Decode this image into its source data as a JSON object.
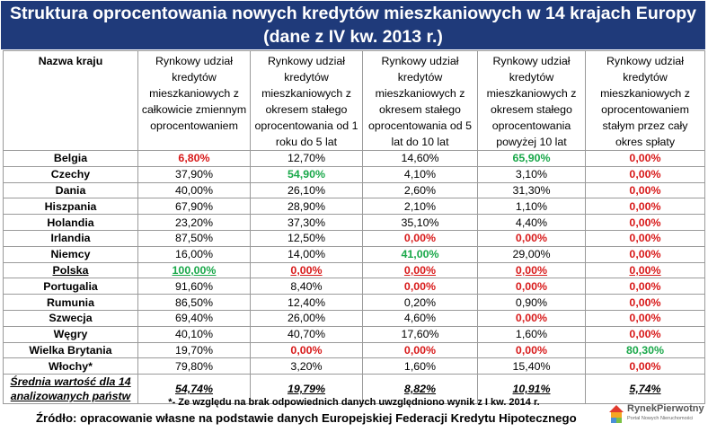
{
  "title": {
    "line1": "Struktura oprocentowania nowych kredytów mieszkaniowych w 14 krajach Europy",
    "line2": "(dane z IV kw. 2013 r.)"
  },
  "table": {
    "headers": [
      "Nazwa kraju",
      "Rynkowy udział kredytów mieszkaniowych z całkowicie zmiennym oprocentowaniem",
      "Rynkowy udział kredytów mieszkaniowych z okresem stałego oprocentowania od 1 roku do 5 lat",
      "Rynkowy udział kredytów mieszkaniowych z okresem stałego oprocentowania od 5 lat do 10 lat",
      "Rynkowy udział kredytów mieszkaniowych z okresem stałego oprocentowania powyżej 10 lat",
      "Rynkowy udział kredytów mieszkaniowych z oprocentowaniem stałym przez cały okres spłaty"
    ],
    "rows": [
      {
        "country": "Belgia",
        "values": [
          "6,80%",
          "12,70%",
          "14,60%",
          "65,90%",
          "0,00%"
        ],
        "styles": [
          "red",
          "",
          "",
          "green",
          "red"
        ]
      },
      {
        "country": "Czechy",
        "values": [
          "37,90%",
          "54,90%",
          "4,10%",
          "3,10%",
          "0,00%"
        ],
        "styles": [
          "",
          "green",
          "",
          "",
          "red"
        ]
      },
      {
        "country": "Dania",
        "values": [
          "40,00%",
          "26,10%",
          "2,60%",
          "31,30%",
          "0,00%"
        ],
        "styles": [
          "",
          "",
          "",
          "",
          "red"
        ]
      },
      {
        "country": "Hiszpania",
        "values": [
          "67,90%",
          "28,90%",
          "2,10%",
          "1,10%",
          "0,00%"
        ],
        "styles": [
          "",
          "",
          "",
          "",
          "red"
        ]
      },
      {
        "country": "Holandia",
        "values": [
          "23,20%",
          "37,30%",
          "35,10%",
          "4,40%",
          "0,00%"
        ],
        "styles": [
          "",
          "",
          "",
          "",
          "red"
        ]
      },
      {
        "country": "Irlandia",
        "values": [
          "87,50%",
          "12,50%",
          "0,00%",
          "0,00%",
          "0,00%"
        ],
        "styles": [
          "",
          "",
          "red",
          "red",
          "red"
        ]
      },
      {
        "country": "Niemcy",
        "values": [
          "16,00%",
          "14,00%",
          "41,00%",
          "29,00%",
          "0,00%"
        ],
        "styles": [
          "",
          "",
          "green",
          "",
          "red"
        ]
      },
      {
        "country": "Polska",
        "values": [
          "100,00%",
          "0,00%",
          "0,00%",
          "0,00%",
          "0,00%"
        ],
        "styles": [
          "green",
          "red",
          "red",
          "red",
          "red"
        ],
        "underline": true
      },
      {
        "country": "Portugalia",
        "values": [
          "91,60%",
          "8,40%",
          "0,00%",
          "0,00%",
          "0,00%"
        ],
        "styles": [
          "",
          "",
          "red",
          "red",
          "red"
        ]
      },
      {
        "country": "Rumunia",
        "values": [
          "86,50%",
          "12,40%",
          "0,20%",
          "0,90%",
          "0,00%"
        ],
        "styles": [
          "",
          "",
          "",
          "",
          "red"
        ]
      },
      {
        "country": "Szwecja",
        "values": [
          "69,40%",
          "26,00%",
          "4,60%",
          "0,00%",
          "0,00%"
        ],
        "styles": [
          "",
          "",
          "",
          "red",
          "red"
        ]
      },
      {
        "country": "Węgry",
        "values": [
          "40,10%",
          "40,70%",
          "17,60%",
          "1,60%",
          "0,00%"
        ],
        "styles": [
          "",
          "",
          "",
          "",
          "red"
        ]
      },
      {
        "country": "Wielka Brytania",
        "values": [
          "19,70%",
          "0,00%",
          "0,00%",
          "0,00%",
          "80,30%"
        ],
        "styles": [
          "",
          "red",
          "red",
          "red",
          "green"
        ]
      },
      {
        "country": "Włochy*",
        "values": [
          "79,80%",
          "3,20%",
          "1,60%",
          "15,40%",
          "0,00%"
        ],
        "styles": [
          "",
          "",
          "",
          "",
          "red"
        ]
      }
    ],
    "average": {
      "label": "Średnia wartość dla 14 analizowanych państw",
      "values": [
        "54,74%",
        "19,79%",
        "8,82%",
        "10,91%",
        "5,74%"
      ]
    }
  },
  "footnote": "*- Ze względu na brak odpowiednich danych uwzględniono wynik z I kw. 2014 r.",
  "source": "Źródło: opracowanie własne na podstawie danych Europejskiej Federacji Kredytu Hipotecznego",
  "logo": {
    "name": "RynekPierwotny",
    "tagline": "Portal Nowych Nieruchomości",
    "icon": "logo-house-icon"
  },
  "colors": {
    "title_bg": "#1f3a7a",
    "red": "#d81a1a",
    "green": "#1aa84a"
  }
}
